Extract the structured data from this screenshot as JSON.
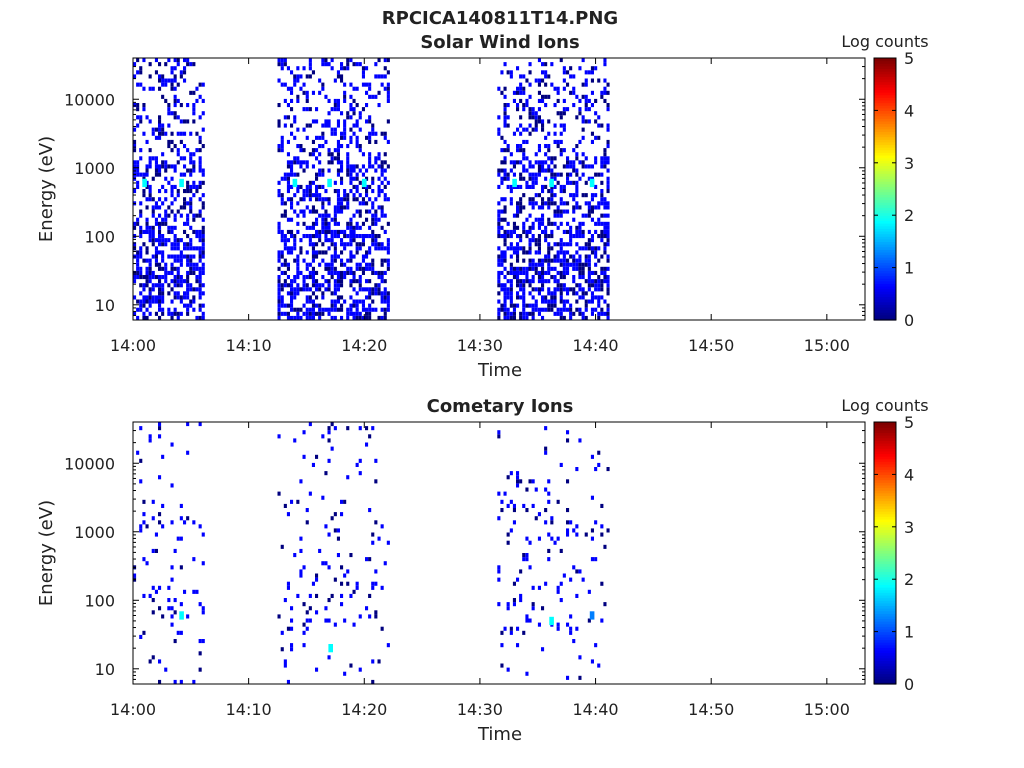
{
  "figure_title": "RPCICA140811T14.PNG",
  "colors": {
    "colormap": [
      "#00007f",
      "#0000ff",
      "#007fff",
      "#00ffff",
      "#7fff7f",
      "#ffff00",
      "#ff7f00",
      "#ff0000",
      "#7f0000"
    ],
    "frame": "#000000",
    "background": "#ffffff"
  },
  "chart_data": [
    {
      "type": "heatmap",
      "title": "Solar Wind Ions",
      "xlabel": "Time",
      "ylabel": "Energy (eV)",
      "x_ticks": [
        "14:00",
        "14:10",
        "14:20",
        "14:30",
        "14:40",
        "14:50",
        "15:00"
      ],
      "x_tick_minutes": [
        0,
        10,
        20,
        30,
        40,
        50,
        60
      ],
      "xlim_minutes": [
        0,
        63.3
      ],
      "y_scale": "log",
      "y_ticks": [
        "10",
        "100",
        "1000",
        "10000"
      ],
      "y_tick_values": [
        10,
        100,
        1000,
        10000
      ],
      "ylim": [
        6,
        40000
      ],
      "colorbar": {
        "label": "Log counts",
        "ticks": [
          "0",
          "1",
          "2",
          "3",
          "4",
          "5"
        ],
        "range": [
          0,
          5
        ]
      },
      "data_intervals_minutes": [
        [
          0,
          6
        ],
        [
          12.5,
          22
        ],
        [
          31.5,
          41
        ]
      ],
      "bright_features": [
        {
          "time_min": 0.8,
          "energy_ev": 600,
          "log_counts": 2.0
        },
        {
          "time_min": 4.0,
          "energy_ev": 600,
          "log_counts": 2.0
        },
        {
          "time_min": 13.8,
          "energy_ev": 600,
          "log_counts": 2.0
        },
        {
          "time_min": 16.8,
          "energy_ev": 600,
          "log_counts": 2.0
        },
        {
          "time_min": 19.8,
          "energy_ev": 600,
          "log_counts": 2.0
        },
        {
          "time_min": 32.8,
          "energy_ev": 600,
          "log_counts": 2.0
        },
        {
          "time_min": 36.0,
          "energy_ev": 600,
          "log_counts": 2.0
        },
        {
          "time_min": 39.5,
          "energy_ev": 600,
          "log_counts": 2.0
        }
      ]
    },
    {
      "type": "heatmap",
      "title": "Cometary Ions",
      "xlabel": "Time",
      "ylabel": "Energy (eV)",
      "x_ticks": [
        "14:00",
        "14:10",
        "14:20",
        "14:30",
        "14:40",
        "14:50",
        "15:00"
      ],
      "x_tick_minutes": [
        0,
        10,
        20,
        30,
        40,
        50,
        60
      ],
      "xlim_minutes": [
        0,
        63.3
      ],
      "y_scale": "log",
      "y_ticks": [
        "10",
        "100",
        "1000",
        "10000"
      ],
      "y_tick_values": [
        10,
        100,
        1000,
        10000
      ],
      "ylim": [
        6,
        40000
      ],
      "colorbar": {
        "label": "Log counts",
        "ticks": [
          "0",
          "1",
          "2",
          "3",
          "4",
          "5"
        ],
        "range": [
          0,
          5
        ]
      },
      "data_intervals_minutes": [
        [
          0,
          6
        ],
        [
          12.5,
          22
        ],
        [
          31.5,
          41
        ]
      ],
      "bright_features": [
        {
          "time_min": 4.0,
          "energy_ev": 60,
          "log_counts": 1.6
        },
        {
          "time_min": 16.9,
          "energy_ev": 20,
          "log_counts": 1.8
        },
        {
          "time_min": 36.0,
          "energy_ev": 50,
          "log_counts": 1.6
        },
        {
          "time_min": 39.5,
          "energy_ev": 60,
          "log_counts": 1.2
        }
      ]
    }
  ]
}
